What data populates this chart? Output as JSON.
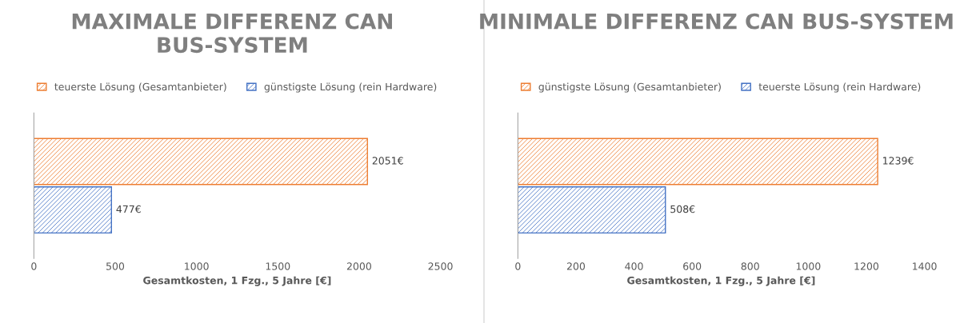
{
  "chart_data": [
    {
      "type": "bar",
      "orientation": "horizontal",
      "title": "MAXIMALE DIFFERENZ CAN BUS-SYSTEM",
      "xlabel": "Gesamtkosten, 1 Fzg., 5 Jahre [€]",
      "categories": [
        null
      ],
      "series": [
        {
          "name": "teuerste Lösung (Gesamtanbieter)",
          "color": "#ed7d31",
          "values": [
            2051
          ],
          "value_labels": [
            "2051€"
          ]
        },
        {
          "name": "günstigste Lösung (rein Hardware)",
          "color": "#4472c4",
          "values": [
            477
          ],
          "value_labels": [
            "477€"
          ]
        }
      ],
      "xlim": [
        0,
        2500
      ],
      "xticks": [
        0,
        500,
        1000,
        1500,
        2000,
        2500
      ],
      "grid": false,
      "legend": "top",
      "tick_labels": "x"
    },
    {
      "type": "bar",
      "orientation": "horizontal",
      "title": "MINIMALE DIFFERENZ CAN BUS-SYSTEM",
      "xlabel": "Gesamtkosten, 1 Fzg., 5 Jahre [€]",
      "categories": [
        null
      ],
      "series": [
        {
          "name": "günstigste Lösung (Gesamtanbieter)",
          "color": "#ed7d31",
          "values": [
            1239
          ],
          "value_labels": [
            "1239€"
          ]
        },
        {
          "name": "teuerste Lösung (rein Hardware)",
          "color": "#4472c4",
          "values": [
            508
          ],
          "value_labels": [
            "508€"
          ]
        }
      ],
      "xlim": [
        0,
        1400
      ],
      "xticks": [
        0,
        200,
        400,
        600,
        800,
        1000,
        1200,
        1400
      ],
      "grid": false,
      "legend": "top",
      "tick_labels": "x"
    }
  ]
}
